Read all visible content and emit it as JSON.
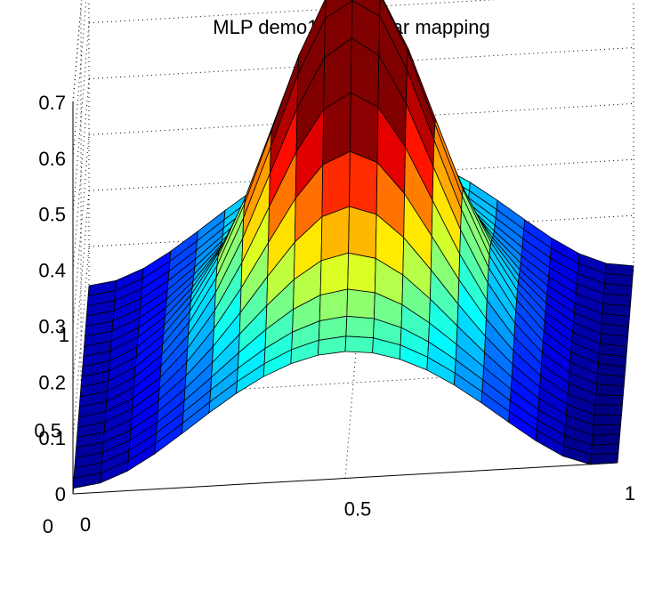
{
  "chart_data": {
    "type": "surface",
    "title": "MLP demo1: nonlinear mapping",
    "xlabel": "",
    "ylabel": "",
    "zlabel": "",
    "xlim": [
      0,
      1
    ],
    "ylim": [
      0,
      1
    ],
    "zlim": [
      0,
      0.7
    ],
    "x_ticks": [
      0,
      0.5,
      1
    ],
    "y_ticks": [
      0,
      0.5,
      1
    ],
    "z_ticks": [
      0,
      0.1,
      0.2,
      0.3,
      0.4,
      0.5,
      0.6,
      0.7
    ],
    "x_tick_labels": [
      "0",
      "0.5",
      "1"
    ],
    "y_tick_labels": [
      "0",
      "0.5",
      "1"
    ],
    "z_tick_labels": [
      "0",
      "0.1",
      "0.2",
      "0.3",
      "0.4",
      "0.5",
      "0.6",
      "0.7"
    ],
    "grid": true,
    "colormap": "jet",
    "grid_resolution": 21,
    "surface_features": [
      {
        "shape": "peak",
        "x": 0.5,
        "y": 0.5,
        "z": 0.5
      },
      {
        "shape": "valley",
        "x": 0.0,
        "y": 0.55,
        "z": 0.0
      },
      {
        "shape": "valley",
        "x": 1.0,
        "y": 0.45,
        "z": 0.0
      }
    ],
    "corner_values": {
      "x0_y0": 0.22,
      "x0_y1": 0.25,
      "x1_y0": 0.27,
      "x1_y1": 0.03
    }
  }
}
